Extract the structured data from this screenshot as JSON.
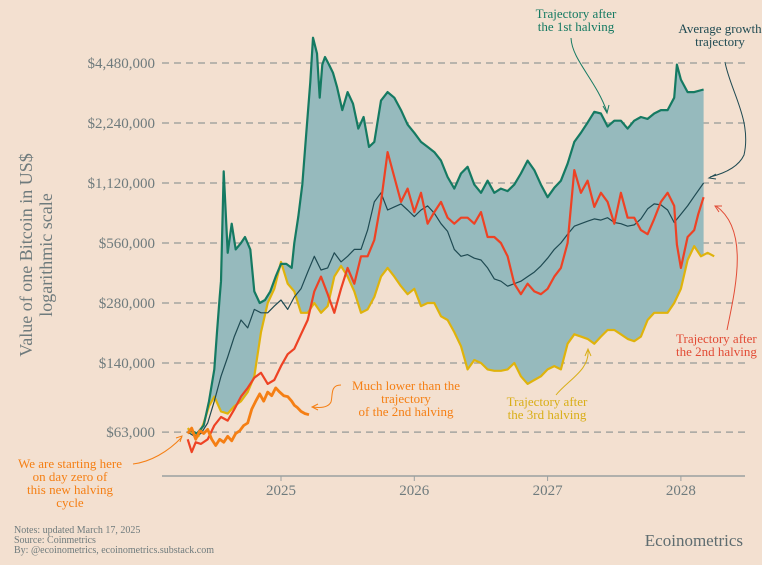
{
  "chart_data": {
    "type": "line",
    "title": "",
    "ylabel": [
      "Value of one Bitcoin in US$",
      "logarithmic scale"
    ],
    "xlabel": "",
    "yscale": "log2",
    "ylim": [
      45000,
      6200000
    ],
    "xlim": [
      2024.2,
      2028.45
    ],
    "yticks": [
      {
        "value": 4480000,
        "label": "$4,480,000"
      },
      {
        "value": 2240000,
        "label": "$2,240,000"
      },
      {
        "value": 1120000,
        "label": "$1,120,000"
      },
      {
        "value": 560000,
        "label": "$560,000"
      },
      {
        "value": 280000,
        "label": "$280,000"
      },
      {
        "value": 140000,
        "label": "$140,000"
      },
      {
        "value": 63000,
        "label": "$63,000"
      }
    ],
    "xticks": [
      {
        "value": 2025,
        "label": "2025"
      },
      {
        "value": 2026,
        "label": "2026"
      },
      {
        "value": 2027,
        "label": "2027"
      },
      {
        "value": 2028,
        "label": "2028"
      }
    ],
    "grid": "horizontal-dashed",
    "band": {
      "name": "Range between trajectories",
      "color": "#96babd",
      "upper_series": "Trajectory after the 1st halving",
      "lower_series": "Trajectory after the 3rd halving",
      "end_x": 2028.17
    },
    "series": [
      {
        "name": "Trajectory after the 1st halving",
        "color": "#157a62",
        "width": 2.2,
        "x": [
          2024.3,
          2024.33,
          2024.37,
          2024.42,
          2024.46,
          2024.5,
          2024.52,
          2024.54,
          2024.55,
          2024.57,
          2024.6,
          2024.63,
          2024.66,
          2024.7,
          2024.73,
          2024.77,
          2024.8,
          2024.84,
          2024.88,
          2024.92,
          2024.96,
          2025.0,
          2025.04,
          2025.08,
          2025.1,
          2025.13,
          2025.16,
          2025.19,
          2025.22,
          2025.24,
          2025.27,
          2025.29,
          2025.31,
          2025.33,
          2025.36,
          2025.39,
          2025.42,
          2025.46,
          2025.5,
          2025.54,
          2025.58,
          2025.62,
          2025.66,
          2025.7,
          2025.75,
          2025.8,
          2025.85,
          2025.9,
          2025.95,
          2026.0,
          2026.05,
          2026.1,
          2026.15,
          2026.2,
          2026.25,
          2026.3,
          2026.35,
          2026.4,
          2026.45,
          2026.5,
          2026.55,
          2026.6,
          2026.65,
          2026.7,
          2026.75,
          2026.8,
          2026.85,
          2026.9,
          2026.95,
          2027.0,
          2027.05,
          2027.1,
          2027.15,
          2027.2,
          2027.25,
          2027.3,
          2027.35,
          2027.4,
          2027.45,
          2027.5,
          2027.55,
          2027.6,
          2027.65,
          2027.7,
          2027.75,
          2027.8,
          2027.85,
          2027.9,
          2027.95,
          2027.97,
          2028.0,
          2028.05,
          2028.1,
          2028.17
        ],
        "y": [
          63000,
          64000,
          62000,
          68000,
          90000,
          130000,
          200000,
          300000,
          360000,
          1280000,
          500000,
          700000,
          520000,
          560000,
          600000,
          520000,
          320000,
          280000,
          290000,
          320000,
          380000,
          440000,
          440000,
          420000,
          560000,
          760000,
          1100000,
          2000000,
          3600000,
          6000000,
          5000000,
          3000000,
          4400000,
          4800000,
          4400000,
          4000000,
          3400000,
          2600000,
          3200000,
          2800000,
          2100000,
          2400000,
          1700000,
          1800000,
          2900000,
          3200000,
          3000000,
          2600000,
          2200000,
          2000000,
          1800000,
          1700000,
          1600000,
          1450000,
          1200000,
          1050000,
          1250000,
          1350000,
          1100000,
          1000000,
          1150000,
          1000000,
          1050000,
          1020000,
          1100000,
          1250000,
          1450000,
          1300000,
          1100000,
          950000,
          1060000,
          1150000,
          1400000,
          1800000,
          2000000,
          2250000,
          2550000,
          2500000,
          2150000,
          2300000,
          2300000,
          2100000,
          2300000,
          2400000,
          2350000,
          2500000,
          2600000,
          2600000,
          3000000,
          4400000,
          3700000,
          3200000,
          3200000,
          3300000
        ]
      },
      {
        "name": "Average growth trajectory",
        "color": "#1f4a52",
        "width": 1.2,
        "x": [
          2024.3,
          2024.35,
          2024.4,
          2024.45,
          2024.5,
          2024.55,
          2024.6,
          2024.65,
          2024.7,
          2024.75,
          2024.8,
          2024.85,
          2024.9,
          2024.95,
          2025.0,
          2025.05,
          2025.1,
          2025.15,
          2025.2,
          2025.25,
          2025.3,
          2025.35,
          2025.4,
          2025.45,
          2025.5,
          2025.55,
          2025.6,
          2025.65,
          2025.7,
          2025.75,
          2025.8,
          2025.85,
          2025.9,
          2025.95,
          2026.0,
          2026.05,
          2026.1,
          2026.15,
          2026.2,
          2026.25,
          2026.3,
          2026.35,
          2026.4,
          2026.45,
          2026.5,
          2026.55,
          2026.6,
          2026.65,
          2026.7,
          2026.75,
          2026.8,
          2026.85,
          2026.9,
          2026.95,
          2027.0,
          2027.05,
          2027.1,
          2027.15,
          2027.2,
          2027.25,
          2027.3,
          2027.35,
          2027.4,
          2027.45,
          2027.5,
          2027.55,
          2027.6,
          2027.65,
          2027.7,
          2027.75,
          2027.8,
          2027.85,
          2027.9,
          2027.95,
          2028.0,
          2028.05,
          2028.1,
          2028.17
        ],
        "y": [
          63000,
          60000,
          62000,
          70000,
          90000,
          120000,
          150000,
          190000,
          230000,
          210000,
          260000,
          250000,
          250000,
          270000,
          290000,
          260000,
          300000,
          330000,
          400000,
          480000,
          410000,
          420000,
          500000,
          450000,
          480000,
          520000,
          520000,
          650000,
          900000,
          1000000,
          820000,
          850000,
          880000,
          820000,
          760000,
          820000,
          860000,
          790000,
          700000,
          640000,
          520000,
          480000,
          490000,
          470000,
          460000,
          420000,
          370000,
          360000,
          340000,
          350000,
          360000,
          380000,
          400000,
          430000,
          470000,
          520000,
          560000,
          620000,
          680000,
          700000,
          720000,
          740000,
          730000,
          750000,
          710000,
          700000,
          680000,
          690000,
          740000,
          830000,
          880000,
          870000,
          820000,
          710000,
          780000,
          860000,
          960000,
          1120000
        ]
      },
      {
        "name": "Trajectory after the 2nd halving",
        "color": "#ee4224",
        "width": 2.2,
        "x": [
          2024.3,
          2024.33,
          2024.36,
          2024.4,
          2024.45,
          2024.5,
          2024.55,
          2024.6,
          2024.65,
          2024.7,
          2024.75,
          2024.8,
          2024.85,
          2024.9,
          2024.95,
          2025.0,
          2025.05,
          2025.1,
          2025.15,
          2025.2,
          2025.25,
          2025.3,
          2025.35,
          2025.4,
          2025.45,
          2025.5,
          2025.55,
          2025.6,
          2025.65,
          2025.7,
          2025.75,
          2025.8,
          2025.85,
          2025.9,
          2025.95,
          2026.0,
          2026.05,
          2026.1,
          2026.15,
          2026.2,
          2026.25,
          2026.3,
          2026.35,
          2026.4,
          2026.45,
          2026.5,
          2026.55,
          2026.6,
          2026.65,
          2026.7,
          2026.75,
          2026.8,
          2026.85,
          2026.9,
          2026.95,
          2027.0,
          2027.05,
          2027.1,
          2027.15,
          2027.2,
          2027.25,
          2027.3,
          2027.35,
          2027.4,
          2027.45,
          2027.5,
          2027.55,
          2027.6,
          2027.65,
          2027.7,
          2027.75,
          2027.8,
          2027.85,
          2027.9,
          2027.95,
          2027.97,
          2028.0,
          2028.05,
          2028.1,
          2028.13,
          2028.17
        ],
        "y": [
          58000,
          50000,
          56000,
          55000,
          58000,
          68000,
          75000,
          72000,
          82000,
          95000,
          105000,
          118000,
          125000,
          110000,
          115000,
          135000,
          155000,
          165000,
          195000,
          230000,
          320000,
          380000,
          310000,
          250000,
          330000,
          420000,
          350000,
          480000,
          480000,
          580000,
          900000,
          1600000,
          1200000,
          900000,
          1050000,
          800000,
          1000000,
          700000,
          800000,
          900000,
          750000,
          700000,
          750000,
          750000,
          700000,
          800000,
          600000,
          600000,
          560000,
          480000,
          350000,
          310000,
          350000,
          320000,
          310000,
          330000,
          380000,
          420000,
          560000,
          1300000,
          1000000,
          1150000,
          850000,
          1000000,
          900000,
          700000,
          1000000,
          750000,
          750000,
          650000,
          620000,
          740000,
          900000,
          1000000,
          860000,
          550000,
          420000,
          600000,
          650000,
          780000,
          950000
        ]
      },
      {
        "name": "Trajectory after the 3rd halving",
        "color": "#dfb30c",
        "width": 2.2,
        "x": [
          2024.3,
          2024.34,
          2024.38,
          2024.42,
          2024.46,
          2024.5,
          2024.55,
          2024.6,
          2024.65,
          2024.7,
          2024.75,
          2024.8,
          2024.85,
          2024.9,
          2024.95,
          2025.0,
          2025.05,
          2025.1,
          2025.15,
          2025.2,
          2025.25,
          2025.3,
          2025.35,
          2025.4,
          2025.45,
          2025.5,
          2025.55,
          2025.6,
          2025.65,
          2025.7,
          2025.75,
          2025.8,
          2025.85,
          2025.9,
          2025.95,
          2026.0,
          2026.05,
          2026.1,
          2026.15,
          2026.2,
          2026.25,
          2026.3,
          2026.35,
          2026.4,
          2026.45,
          2026.5,
          2026.55,
          2026.6,
          2026.65,
          2026.7,
          2026.75,
          2026.8,
          2026.85,
          2026.9,
          2026.95,
          2027.0,
          2027.05,
          2027.1,
          2027.15,
          2027.2,
          2027.25,
          2027.3,
          2027.35,
          2027.4,
          2027.45,
          2027.5,
          2027.55,
          2027.6,
          2027.65,
          2027.7,
          2027.75,
          2027.8,
          2027.85,
          2027.9,
          2027.95,
          2028.0,
          2028.05,
          2028.1,
          2028.15,
          2028.2,
          2028.25
        ],
        "y": [
          66000,
          62000,
          60000,
          70000,
          85000,
          95000,
          80000,
          78000,
          85000,
          90000,
          100000,
          120000,
          200000,
          280000,
          330000,
          450000,
          350000,
          320000,
          250000,
          250000,
          280000,
          250000,
          270000,
          380000,
          430000,
          380000,
          320000,
          250000,
          260000,
          300000,
          380000,
          420000,
          380000,
          340000,
          310000,
          330000,
          270000,
          280000,
          280000,
          240000,
          230000,
          200000,
          170000,
          130000,
          145000,
          140000,
          130000,
          128000,
          128000,
          130000,
          140000,
          120000,
          110000,
          115000,
          120000,
          130000,
          135000,
          130000,
          175000,
          195000,
          190000,
          185000,
          175000,
          190000,
          205000,
          205000,
          195000,
          185000,
          180000,
          190000,
          230000,
          250000,
          250000,
          250000,
          280000,
          330000,
          460000,
          540000,
          480000,
          500000,
          480000
        ]
      },
      {
        "name": "Current trajectory (4th halving)",
        "color": "#f57f14",
        "width": 2.8,
        "x": [
          2024.3,
          2024.33,
          2024.36,
          2024.39,
          2024.42,
          2024.45,
          2024.48,
          2024.51,
          2024.54,
          2024.57,
          2024.6,
          2024.63,
          2024.66,
          2024.69,
          2024.72,
          2024.75,
          2024.78,
          2024.81,
          2024.84,
          2024.87,
          2024.9,
          2024.93,
          2024.96,
          2024.99,
          2025.02,
          2025.05,
          2025.08,
          2025.1,
          2025.12,
          2025.15,
          2025.18,
          2025.21
        ],
        "y": [
          62000,
          66000,
          58000,
          64000,
          62000,
          65000,
          58000,
          54000,
          58000,
          56000,
          60000,
          57000,
          62000,
          64000,
          68000,
          70000,
          82000,
          90000,
          98000,
          90000,
          100000,
          96000,
          105000,
          100000,
          96000,
          95000,
          90000,
          86000,
          84000,
          80000,
          78000,
          77000
        ]
      }
    ],
    "annotations": [
      {
        "text": [
          "Trajectory after",
          "the 1st halving"
        ],
        "color": "#157a62",
        "target": "Trajectory after the 1st halving"
      },
      {
        "text": [
          "Average growth",
          "trajectory"
        ],
        "color": "#1f4a52",
        "target": "Average growth trajectory"
      },
      {
        "text": [
          "Trajectory after",
          "the 2nd halving"
        ],
        "color": "#e24b35",
        "target": "Trajectory after the 2nd halving"
      },
      {
        "text": [
          "Trajectory after",
          "the 3rd halving"
        ],
        "color": "#d9ae17",
        "target": "Trajectory after the 3rd halving"
      },
      {
        "text": [
          "Much lower than the",
          "trajectory",
          "of the 2nd halving"
        ],
        "color": "#f57f14",
        "target": "Current trajectory (4th halving)"
      },
      {
        "text": [
          "We are starting here",
          "on day zero of",
          "this new halving",
          "cycle"
        ],
        "color": "#f57f14",
        "target": "start point"
      }
    ]
  },
  "footer": {
    "notes": [
      "Notes: updated March 17, 2025",
      "Source: Coinmetrics",
      "By: @ecoinometrics, ecoinometrics.substack.com"
    ],
    "brand": "Ecoinometrics"
  }
}
